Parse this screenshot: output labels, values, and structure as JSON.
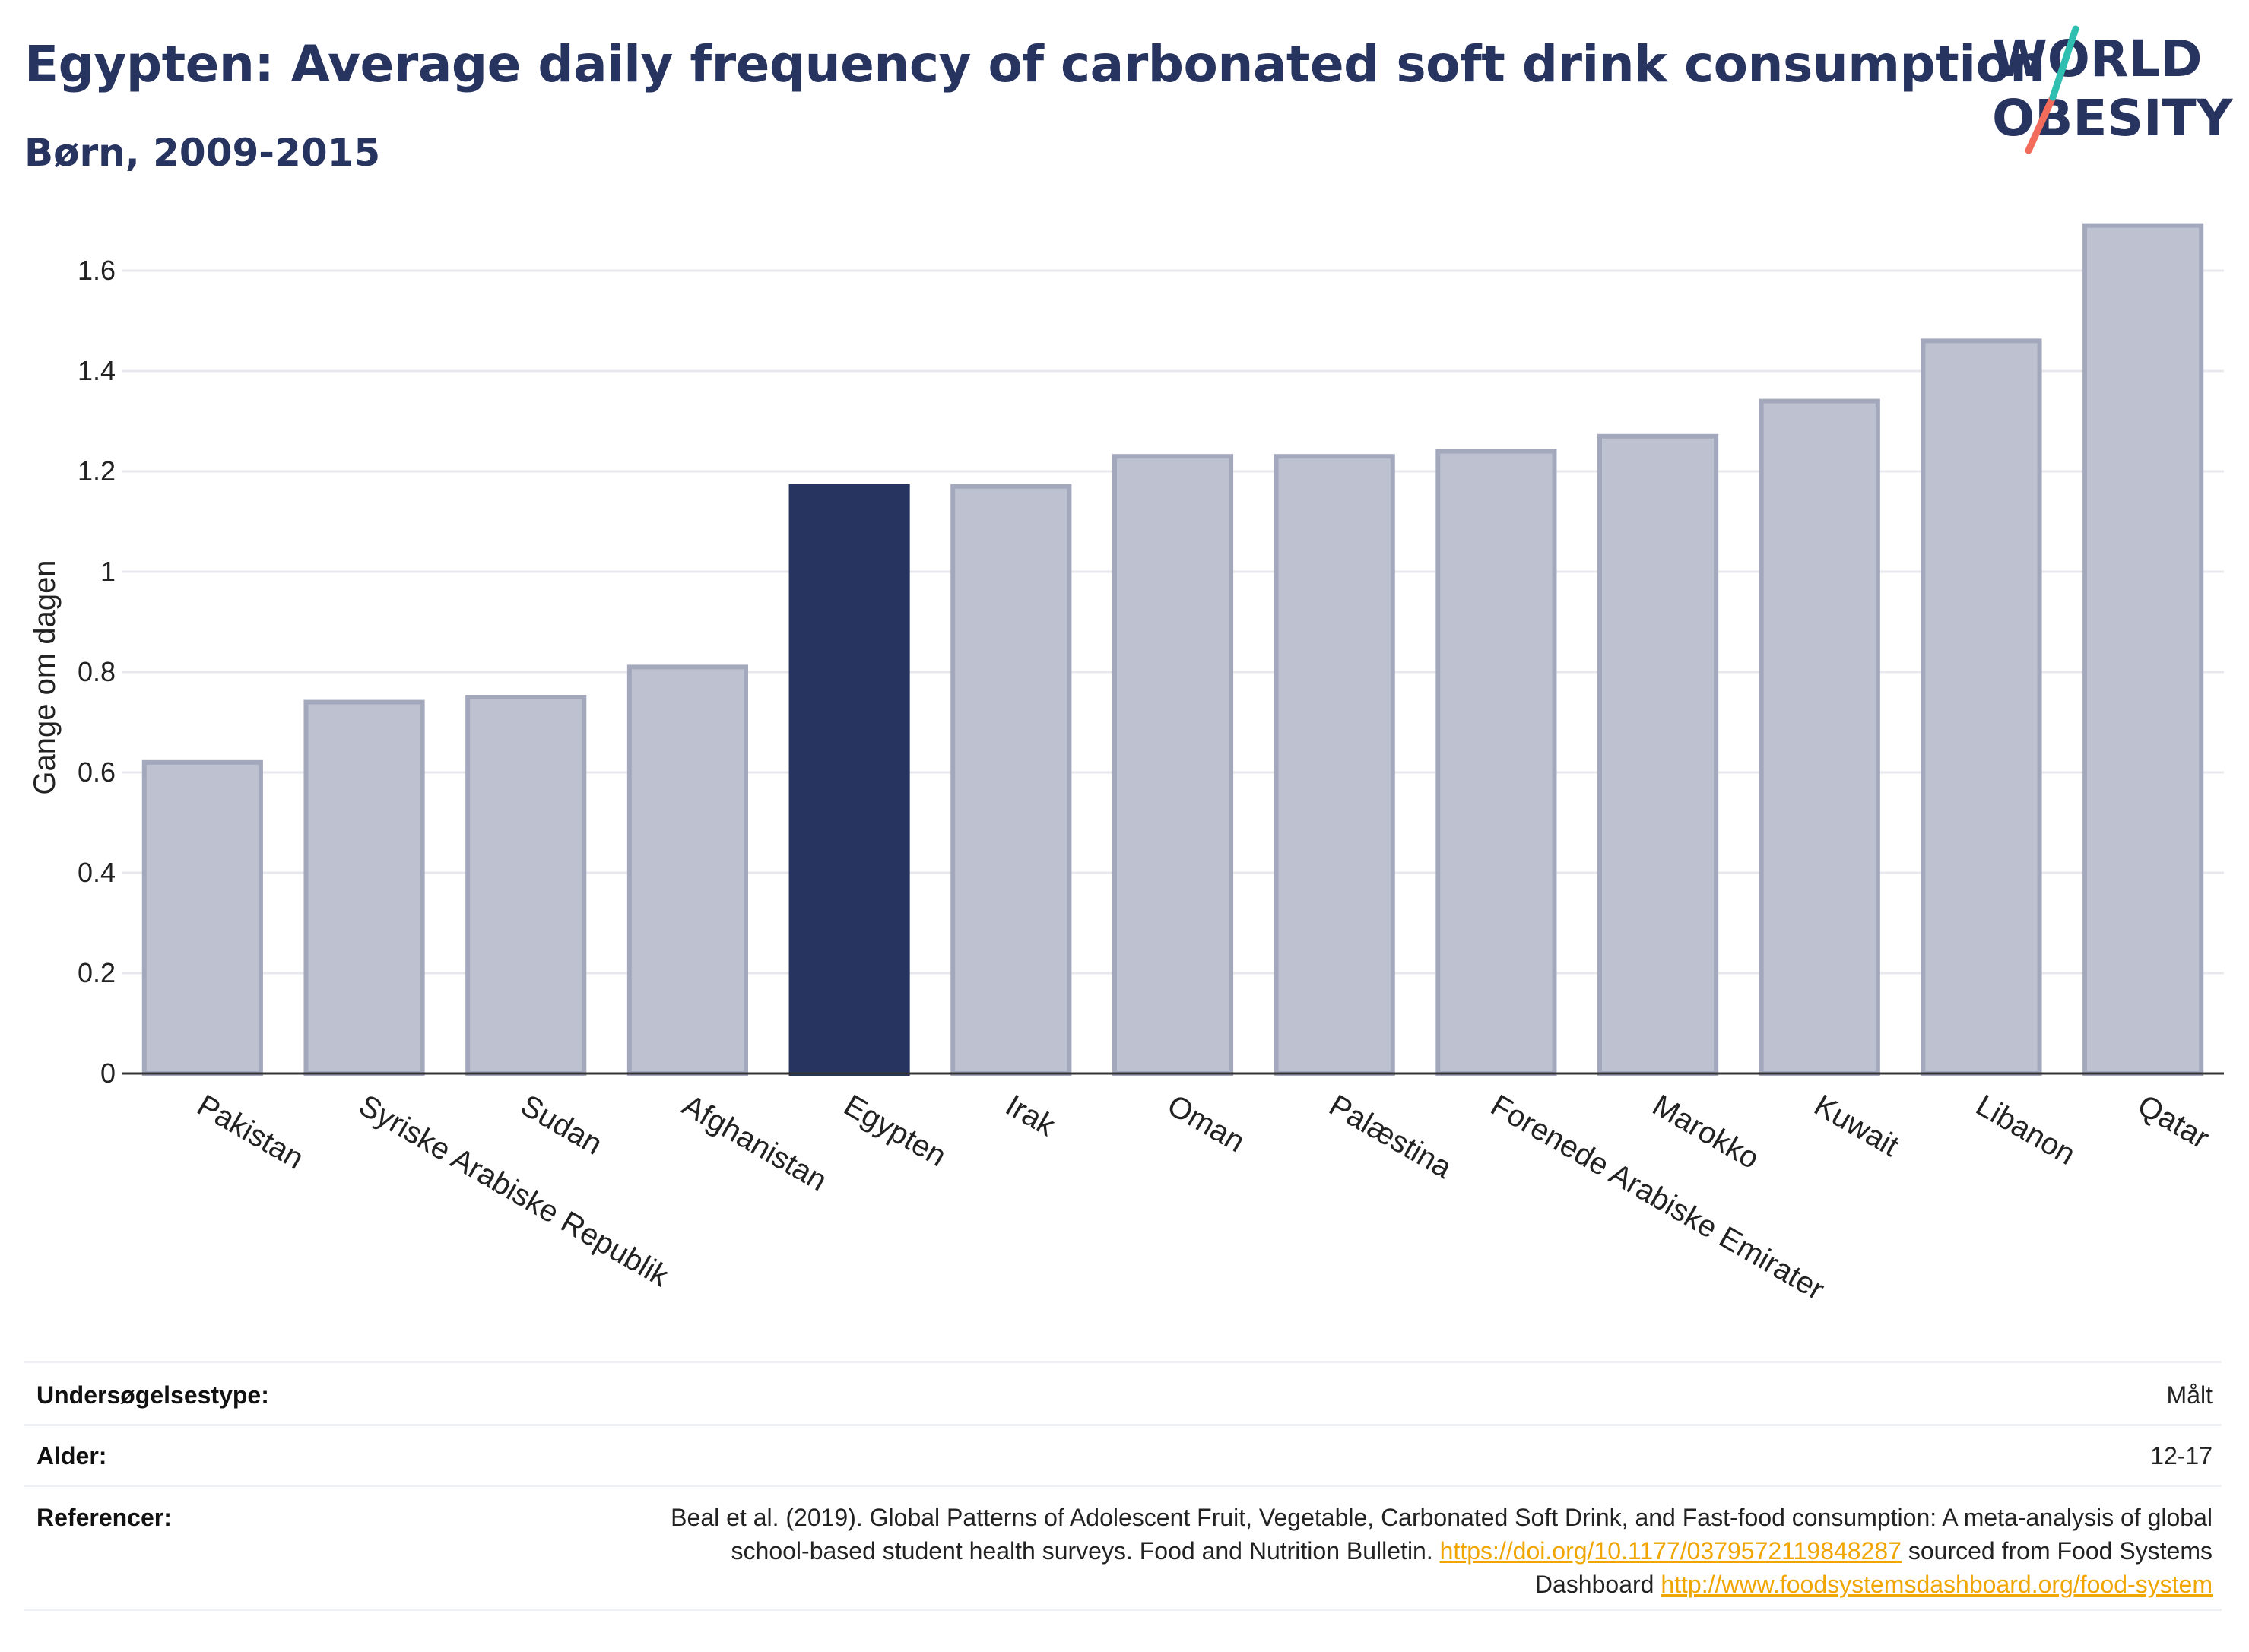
{
  "header": {
    "title": "Egypten: Average daily frequency of carbonated soft drink consumption",
    "subtitle": "Børn, 2009-2015"
  },
  "logo": {
    "line1": "WORLD",
    "line2": "OBESITY",
    "accent_colors": [
      "#2ebfb0",
      "#f26b5b"
    ]
  },
  "chart_data": {
    "type": "bar",
    "ylabel": "Gange om dagen",
    "xlabel": "",
    "ylim": [
      0,
      1.7
    ],
    "yticks": [
      0,
      0.2,
      0.4,
      0.6,
      0.8,
      1,
      1.2,
      1.4,
      1.6
    ],
    "ytick_labels": [
      "0",
      "0.2",
      "0.4",
      "0.6",
      "0.8",
      "1",
      "1.2",
      "1.4",
      "1.6"
    ],
    "grid": true,
    "categories": [
      "Pakistan",
      "Syriske Arabiske Republik",
      "Sudan",
      "Afghanistan",
      "Egypten",
      "Irak",
      "Oman",
      "Palæstina",
      "Forenede Arabiske Emirater",
      "Marokko",
      "Kuwait",
      "Libanon",
      "Qatar"
    ],
    "values": [
      0.62,
      0.74,
      0.75,
      0.81,
      1.17,
      1.17,
      1.23,
      1.23,
      1.24,
      1.27,
      1.34,
      1.46,
      1.69
    ],
    "highlight": "Egypten",
    "colors": {
      "highlight": "#283460",
      "default": "#bec2d0",
      "default_border": "#a3a8bd"
    }
  },
  "info": {
    "survey_label": "Undersøgelsestype:",
    "survey_value": "Målt",
    "age_label": "Alder:",
    "age_value": "12-17",
    "ref_label": "Referencer:",
    "ref_text1": "Beal et al. (2019). Global Patterns of Adolescent Fruit, Vegetable, Carbonated Soft Drink, and Fast-food consumption: A meta-analysis of global school-based student health surveys. Food and Nutrition Bulletin.",
    "ref_link1": "https://doi.org/10.1177/0379572119848287",
    "ref_text2": "sourced from Food Systems Dashboard",
    "ref_link2": "http://www.foodsystemsdashboard.org/food-system"
  }
}
